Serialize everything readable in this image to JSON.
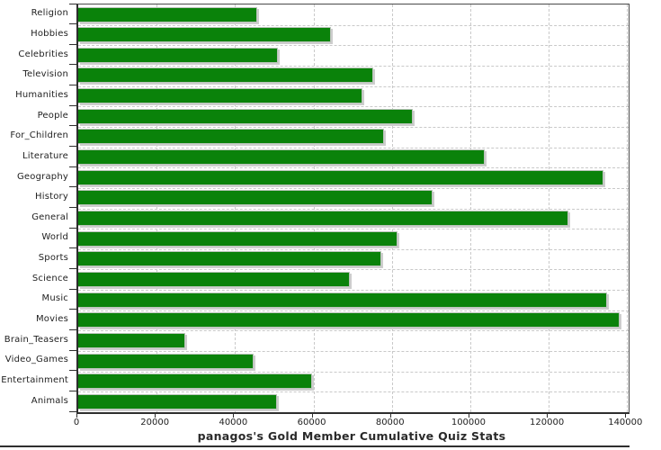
{
  "chart_data": {
    "type": "bar",
    "orientation": "horizontal",
    "title": "panagos's Gold Member Cumulative Quiz Stats",
    "xlabel": "",
    "ylabel": "",
    "categories": [
      "Religion",
      "Hobbies",
      "Celebrities",
      "Television",
      "Humanities",
      "People",
      "For_Children",
      "Literature",
      "Geography",
      "History",
      "General",
      "World",
      "Sports",
      "Science",
      "Music",
      "Movies",
      "Brain_Teasers",
      "Video_Games",
      "Entertainment",
      "Animals"
    ],
    "values": [
      45600,
      64500,
      51000,
      75200,
      72500,
      85400,
      77900,
      103700,
      133900,
      90400,
      125100,
      81400,
      77200,
      69300,
      134800,
      138000,
      27300,
      44800,
      59600,
      50700
    ],
    "x_ticks": [
      0,
      20000,
      40000,
      60000,
      80000,
      100000,
      120000,
      140000
    ],
    "xlim": [
      0,
      140390
    ],
    "grid": true,
    "legend": false,
    "bar_color": "#0a820a",
    "shadow_color": "#cdcdcd",
    "gridline_color": "#c9c9c9",
    "axis_color": "#2e2e2e",
    "text_color": "#1f1f1f"
  }
}
